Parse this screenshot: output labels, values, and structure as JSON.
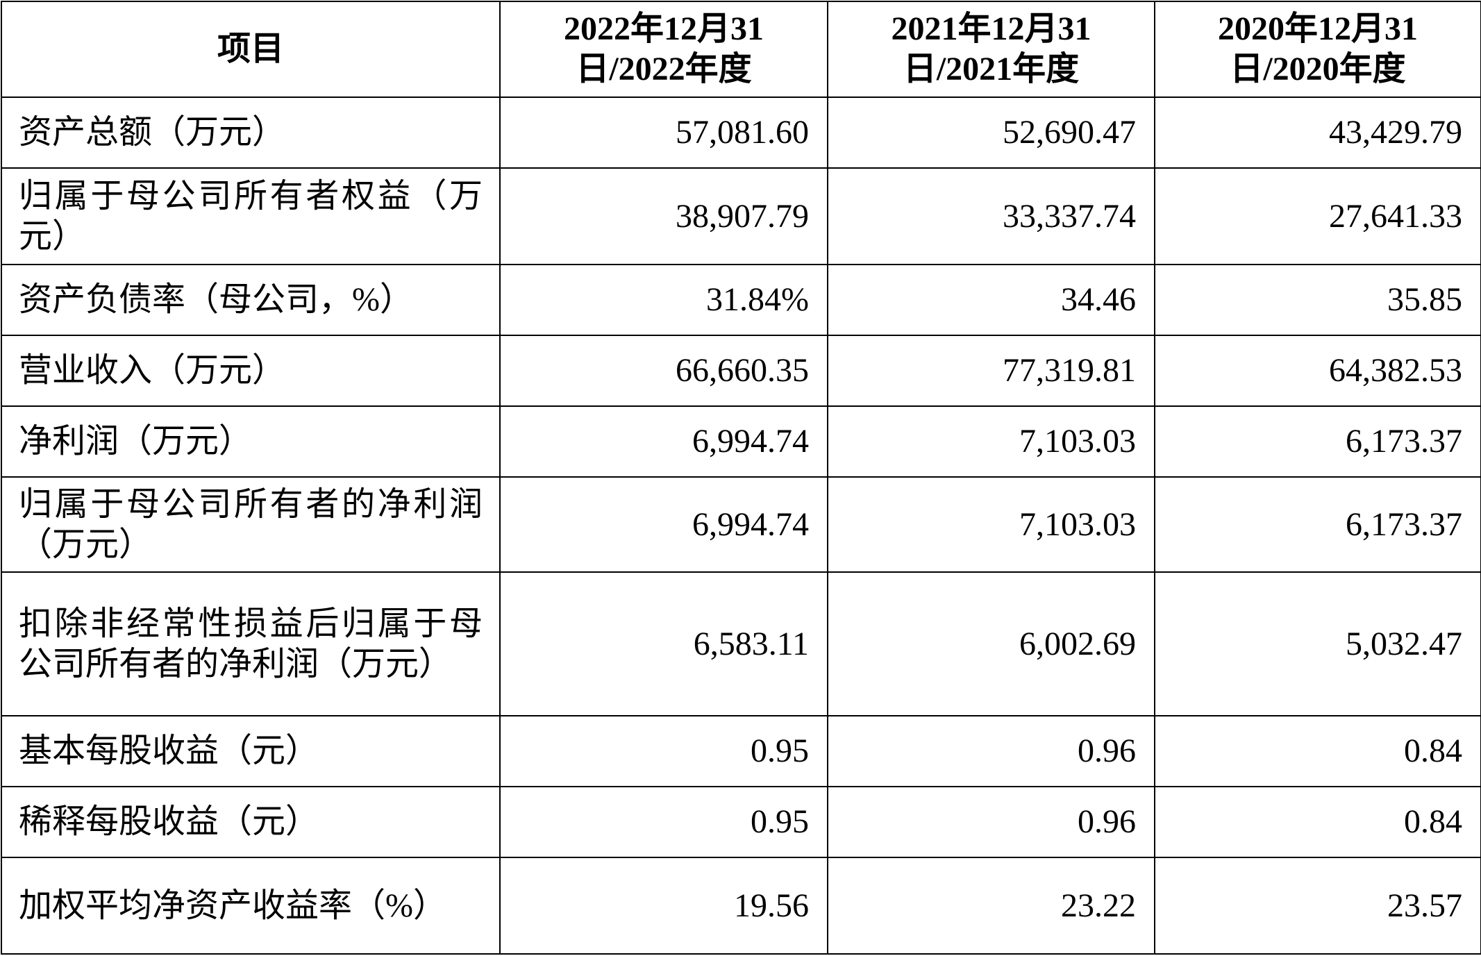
{
  "table": {
    "header": [
      "项目",
      "2022年12月31日/2022年度",
      "2021年12月31日/2021年度",
      "2020年12月31日/2020年度"
    ],
    "rows": [
      [
        "资产总额（万元）",
        "57,081.60",
        "52,690.47",
        "43,429.79"
      ],
      [
        "归属于母公司所有者权益（万元）",
        "38,907.79",
        "33,337.74",
        "27,641.33"
      ],
      [
        "资产负债率（母公司，%）",
        "31.84%",
        "34.46",
        "35.85"
      ],
      [
        "营业收入（万元）",
        "66,660.35",
        "77,319.81",
        "64,382.53"
      ],
      [
        "净利润（万元）",
        "6,994.74",
        "7,103.03",
        "6,173.37"
      ],
      [
        "归属于母公司所有者的净利润（万元）",
        "6,994.74",
        "7,103.03",
        "6,173.37"
      ],
      [
        "扣除非经常性损益后归属于母公司所有者的净利润（万元）",
        "6,583.11",
        "6,002.69",
        "5,032.47"
      ],
      [
        "基本每股收益（元）",
        "0.95",
        "0.96",
        "0.84"
      ],
      [
        "稀释每股收益（元）",
        "0.95",
        "0.96",
        "0.84"
      ],
      [
        "加权平均净资产收益率（%）",
        "19.56",
        "23.22",
        "23.57"
      ]
    ]
  }
}
